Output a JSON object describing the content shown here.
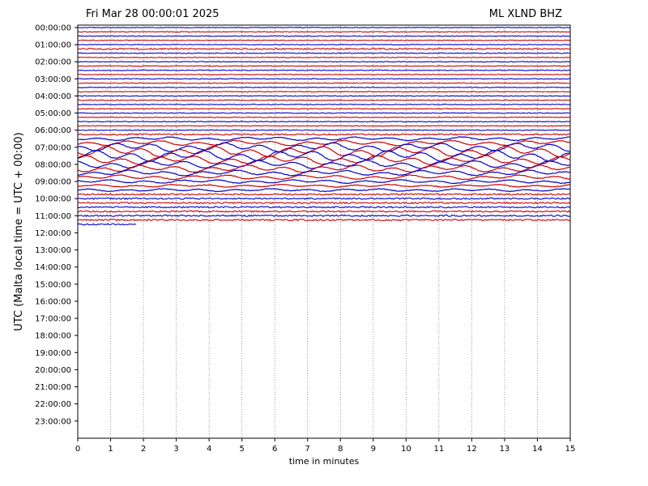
{
  "chart_data": {
    "type": "line",
    "title_left": "Fri Mar 28 00:00:01 2025",
    "title_right": "ML XLND BHZ",
    "xlabel": "time in minutes",
    "ylabel": "UTC (Malta local time = UTC + 00:00)",
    "xlim": [
      0,
      15
    ],
    "xticks": [
      0,
      1,
      2,
      3,
      4,
      5,
      6,
      7,
      8,
      9,
      10,
      11,
      12,
      13,
      14,
      15
    ],
    "ytick_labels": [
      "00:00:00",
      "01:00:00",
      "02:00:00",
      "03:00:00",
      "04:00:00",
      "05:00:00",
      "06:00:00",
      "07:00:00",
      "08:00:00",
      "09:00:00",
      "10:00:00",
      "11:00:00",
      "12:00:00",
      "13:00:00",
      "14:00:00",
      "15:00:00",
      "16:00:00",
      "17:00:00",
      "18:00:00",
      "19:00:00",
      "20:00:00",
      "21:00:00",
      "22:00:00",
      "23:00:00"
    ],
    "traces_per_hour": 4,
    "trace_minutes": 15,
    "trace_colors": [
      "#0000cc",
      "#cc0000"
    ],
    "complete_traces": 46,
    "last_trace_end_minute": 1.8,
    "amplitude_by_trace": [
      1,
      1,
      1,
      1,
      1,
      2,
      1,
      1,
      1,
      1,
      1,
      1,
      1,
      1,
      1,
      1,
      1,
      1,
      1,
      1,
      1,
      1,
      1,
      1,
      1,
      2,
      4,
      6,
      10,
      12,
      12,
      10,
      9,
      8,
      6,
      5,
      4,
      3,
      3,
      2,
      2,
      2,
      2,
      2,
      2,
      2,
      2
    ],
    "grid": "vertical-dotted"
  }
}
